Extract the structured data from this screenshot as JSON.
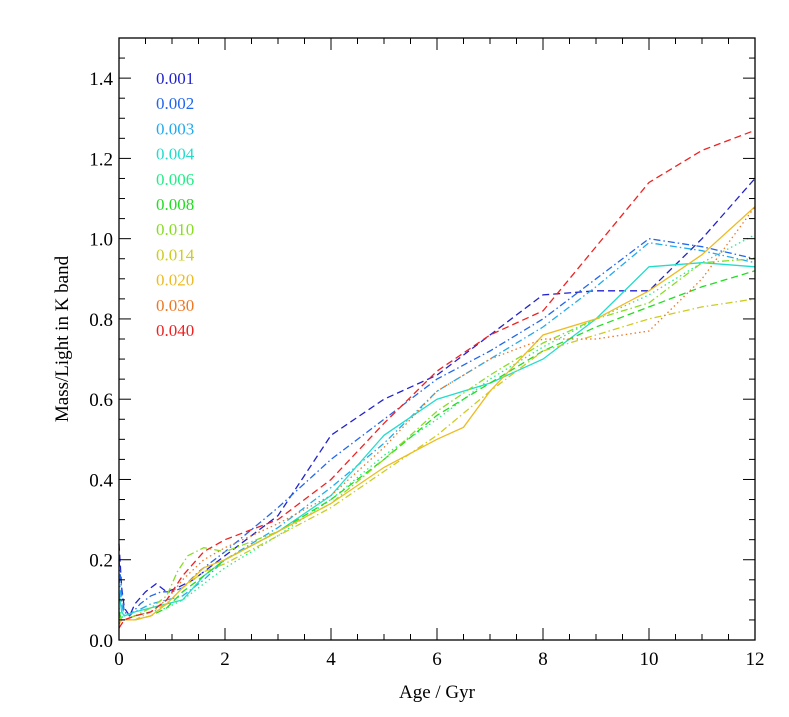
{
  "chart_data": {
    "type": "line",
    "xlabel": "Age / Gyr",
    "ylabel": "Mass/Light in K band",
    "xlim": [
      0,
      12
    ],
    "ylim": [
      0,
      1.5
    ],
    "xticks": [
      0,
      2,
      4,
      6,
      8,
      10,
      12
    ],
    "yticks": [
      0.0,
      0.2,
      0.4,
      0.6,
      0.8,
      1.0,
      1.2,
      1.4
    ],
    "xtick_labels": [
      "0",
      "2",
      "4",
      "6",
      "8",
      "10",
      "12"
    ],
    "ytick_labels": [
      "0.0",
      "0.2",
      "0.4",
      "0.6",
      "0.8",
      "1.0",
      "1.2",
      "1.4"
    ],
    "grid": false,
    "legend_position": "top-left",
    "series": [
      {
        "name": "0.001",
        "color": "#2222cc",
        "dash": "dashed",
        "points": [
          [
            0.0,
            0.24
          ],
          [
            0.05,
            0.13
          ],
          [
            0.1,
            0.08
          ],
          [
            0.2,
            0.06
          ],
          [
            0.3,
            0.09
          ],
          [
            0.5,
            0.12
          ],
          [
            0.7,
            0.14
          ],
          [
            0.9,
            0.12
          ],
          [
            1.1,
            0.13
          ],
          [
            1.4,
            0.15
          ],
          [
            2,
            0.21
          ],
          [
            3,
            0.31
          ],
          [
            4,
            0.51
          ],
          [
            5,
            0.6
          ],
          [
            6,
            0.66
          ],
          [
            7,
            0.76
          ],
          [
            8,
            0.86
          ],
          [
            9,
            0.87
          ],
          [
            10,
            0.87
          ],
          [
            11,
            1.0
          ],
          [
            12,
            1.15
          ]
        ]
      },
      {
        "name": "0.002",
        "color": "#2266ee",
        "dash": "dashdot",
        "points": [
          [
            0.0,
            0.2
          ],
          [
            0.05,
            0.12
          ],
          [
            0.1,
            0.07
          ],
          [
            0.2,
            0.06
          ],
          [
            0.4,
            0.09
          ],
          [
            0.6,
            0.11
          ],
          [
            0.8,
            0.12
          ],
          [
            1.0,
            0.12
          ],
          [
            1.2,
            0.13
          ],
          [
            1.5,
            0.17
          ],
          [
            2,
            0.22
          ],
          [
            3,
            0.33
          ],
          [
            4,
            0.45
          ],
          [
            5,
            0.55
          ],
          [
            6,
            0.65
          ],
          [
            7,
            0.72
          ],
          [
            8,
            0.8
          ],
          [
            9,
            0.9
          ],
          [
            10,
            1.0
          ],
          [
            11,
            0.98
          ],
          [
            12,
            0.95
          ]
        ]
      },
      {
        "name": "0.003",
        "color": "#22aaee",
        "dash": "dashdot",
        "points": [
          [
            0.0,
            0.16
          ],
          [
            0.05,
            0.09
          ],
          [
            0.1,
            0.06
          ],
          [
            0.3,
            0.07
          ],
          [
            0.6,
            0.09
          ],
          [
            0.9,
            0.1
          ],
          [
            1.2,
            0.11
          ],
          [
            1.6,
            0.15
          ],
          [
            2,
            0.2
          ],
          [
            3,
            0.28
          ],
          [
            4,
            0.38
          ],
          [
            5,
            0.49
          ],
          [
            6,
            0.62
          ],
          [
            7,
            0.7
          ],
          [
            8,
            0.78
          ],
          [
            9,
            0.88
          ],
          [
            10,
            0.99
          ],
          [
            11,
            0.97
          ],
          [
            12,
            0.94
          ]
        ]
      },
      {
        "name": "0.004",
        "color": "#22ddcc",
        "dash": "solid",
        "points": [
          [
            0.0,
            0.12
          ],
          [
            0.05,
            0.07
          ],
          [
            0.1,
            0.06
          ],
          [
            0.3,
            0.07
          ],
          [
            0.6,
            0.08
          ],
          [
            0.9,
            0.09
          ],
          [
            1.2,
            0.1
          ],
          [
            1.6,
            0.16
          ],
          [
            2,
            0.2
          ],
          [
            3,
            0.27
          ],
          [
            4,
            0.36
          ],
          [
            5,
            0.51
          ],
          [
            6,
            0.6
          ],
          [
            7,
            0.64
          ],
          [
            8,
            0.7
          ],
          [
            9,
            0.8
          ],
          [
            10,
            0.93
          ],
          [
            11,
            0.94
          ],
          [
            12,
            0.93
          ]
        ]
      },
      {
        "name": "0.006",
        "color": "#22ee88",
        "dash": "dotted",
        "points": [
          [
            0.0,
            0.08
          ],
          [
            0.05,
            0.06
          ],
          [
            0.1,
            0.05
          ],
          [
            0.3,
            0.06
          ],
          [
            0.6,
            0.07
          ],
          [
            0.9,
            0.08
          ],
          [
            1.2,
            0.1
          ],
          [
            1.6,
            0.14
          ],
          [
            2,
            0.18
          ],
          [
            3,
            0.26
          ],
          [
            4,
            0.35
          ],
          [
            5,
            0.46
          ],
          [
            6,
            0.55
          ],
          [
            7,
            0.65
          ],
          [
            8,
            0.73
          ],
          [
            9,
            0.8
          ],
          [
            10,
            0.86
          ],
          [
            11,
            0.94
          ],
          [
            12,
            1.01
          ]
        ]
      },
      {
        "name": "0.008",
        "color": "#22dd22",
        "dash": "dashed",
        "points": [
          [
            0.0,
            0.07
          ],
          [
            0.05,
            0.05
          ],
          [
            0.1,
            0.05
          ],
          [
            0.3,
            0.05
          ],
          [
            0.6,
            0.06
          ],
          [
            0.9,
            0.08
          ],
          [
            1.2,
            0.12
          ],
          [
            1.6,
            0.16
          ],
          [
            2,
            0.2
          ],
          [
            3,
            0.27
          ],
          [
            4,
            0.35
          ],
          [
            5,
            0.45
          ],
          [
            6,
            0.56
          ],
          [
            7,
            0.64
          ],
          [
            8,
            0.72
          ],
          [
            9,
            0.78
          ],
          [
            10,
            0.83
          ],
          [
            11,
            0.88
          ],
          [
            12,
            0.92
          ]
        ]
      },
      {
        "name": "0.010",
        "color": "#88dd22",
        "dash": "dashdot",
        "points": [
          [
            0.0,
            0.06
          ],
          [
            0.05,
            0.05
          ],
          [
            0.1,
            0.05
          ],
          [
            0.3,
            0.06
          ],
          [
            0.6,
            0.08
          ],
          [
            0.9,
            0.11
          ],
          [
            1.1,
            0.17
          ],
          [
            1.3,
            0.21
          ],
          [
            1.6,
            0.23
          ],
          [
            2,
            0.22
          ],
          [
            3,
            0.27
          ],
          [
            4,
            0.34
          ],
          [
            5,
            0.45
          ],
          [
            6,
            0.57
          ],
          [
            7,
            0.66
          ],
          [
            8,
            0.74
          ],
          [
            9,
            0.8
          ],
          [
            10,
            0.84
          ],
          [
            11,
            0.94
          ],
          [
            12,
            0.95
          ]
        ]
      },
      {
        "name": "0.014",
        "color": "#cccc22",
        "dash": "dashdot",
        "points": [
          [
            0.0,
            0.05
          ],
          [
            0.05,
            0.05
          ],
          [
            0.1,
            0.05
          ],
          [
            0.3,
            0.05
          ],
          [
            0.6,
            0.07
          ],
          [
            0.9,
            0.09
          ],
          [
            1.2,
            0.13
          ],
          [
            1.6,
            0.17
          ],
          [
            2,
            0.19
          ],
          [
            3,
            0.26
          ],
          [
            4,
            0.33
          ],
          [
            5,
            0.42
          ],
          [
            6,
            0.51
          ],
          [
            7,
            0.62
          ],
          [
            8,
            0.72
          ],
          [
            9,
            0.76
          ],
          [
            10,
            0.8
          ],
          [
            11,
            0.83
          ],
          [
            12,
            0.85
          ]
        ]
      },
      {
        "name": "0.020",
        "color": "#eebb22",
        "dash": "solid",
        "points": [
          [
            0.0,
            0.04
          ],
          [
            0.05,
            0.05
          ],
          [
            0.1,
            0.05
          ],
          [
            0.3,
            0.05
          ],
          [
            0.6,
            0.06
          ],
          [
            0.9,
            0.09
          ],
          [
            1.2,
            0.13
          ],
          [
            1.6,
            0.18
          ],
          [
            2,
            0.2
          ],
          [
            3,
            0.27
          ],
          [
            4,
            0.34
          ],
          [
            5,
            0.43
          ],
          [
            6,
            0.5
          ],
          [
            6.5,
            0.53
          ],
          [
            7,
            0.62
          ],
          [
            8,
            0.76
          ],
          [
            9,
            0.8
          ],
          [
            10,
            0.87
          ],
          [
            11,
            0.96
          ],
          [
            12,
            1.08
          ]
        ]
      },
      {
        "name": "0.030",
        "color": "#ee7722",
        "dash": "dotted",
        "points": [
          [
            0.0,
            0.04
          ],
          [
            0.05,
            0.05
          ],
          [
            0.1,
            0.05
          ],
          [
            0.3,
            0.06
          ],
          [
            0.6,
            0.07
          ],
          [
            0.9,
            0.1
          ],
          [
            1.2,
            0.15
          ],
          [
            1.6,
            0.2
          ],
          [
            2,
            0.23
          ],
          [
            3,
            0.29
          ],
          [
            4,
            0.36
          ],
          [
            5,
            0.48
          ],
          [
            6,
            0.62
          ],
          [
            7,
            0.7
          ],
          [
            8,
            0.75
          ],
          [
            9,
            0.75
          ],
          [
            10,
            0.77
          ],
          [
            11,
            0.9
          ],
          [
            12,
            1.08
          ]
        ]
      },
      {
        "name": "0.040",
        "color": "#ee2222",
        "dash": "dashed",
        "points": [
          [
            0.0,
            0.03
          ],
          [
            0.05,
            0.04
          ],
          [
            0.1,
            0.05
          ],
          [
            0.3,
            0.06
          ],
          [
            0.6,
            0.07
          ],
          [
            0.9,
            0.1
          ],
          [
            1.2,
            0.16
          ],
          [
            1.6,
            0.22
          ],
          [
            2,
            0.25
          ],
          [
            3,
            0.3
          ],
          [
            4,
            0.4
          ],
          [
            5,
            0.54
          ],
          [
            6,
            0.67
          ],
          [
            7,
            0.76
          ],
          [
            8,
            0.82
          ],
          [
            9,
            0.98
          ],
          [
            10,
            1.14
          ],
          [
            11,
            1.22
          ],
          [
            12,
            1.27
          ]
        ]
      }
    ]
  }
}
